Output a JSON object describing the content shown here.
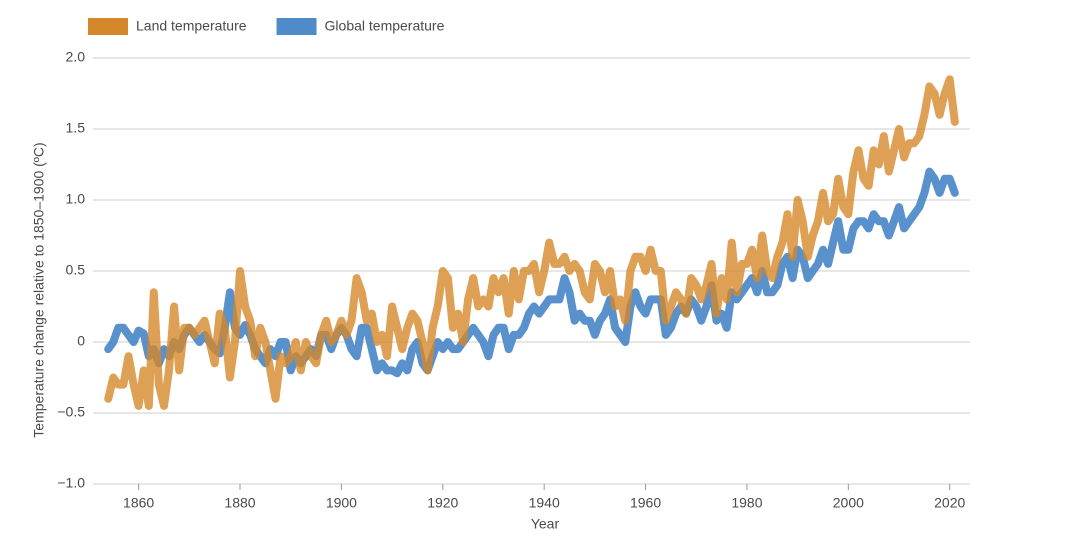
{
  "chart_data": {
    "type": "line",
    "y_label": "Temperature change relative to 1850–1900 (ºC)",
    "x_label": "Year",
    "xlim": [
      1851,
      2024
    ],
    "xticks": [
      1860,
      1880,
      1900,
      1920,
      1940,
      1960,
      1980,
      2000,
      2020
    ],
    "ylim": [
      -1.0,
      2.0
    ],
    "yticks": [
      {
        "value": -1.0,
        "label": "−1.0"
      },
      {
        "value": -0.5,
        "label": "−0.5"
      },
      0,
      {
        "value": 0.5,
        "label": "0.5"
      },
      {
        "value": 1.0,
        "label": "1.0"
      },
      {
        "value": 1.5,
        "label": "1.5"
      },
      {
        "value": 2.0,
        "label": "2.0"
      }
    ],
    "grid": true,
    "legend": "top-left",
    "x": [
      1854,
      1855,
      1856,
      1857,
      1858,
      1859,
      1860,
      1861,
      1862,
      1863,
      1864,
      1865,
      1866,
      1867,
      1868,
      1869,
      1870,
      1871,
      1872,
      1873,
      1874,
      1875,
      1876,
      1877,
      1878,
      1879,
      1880,
      1881,
      1882,
      1883,
      1884,
      1885,
      1886,
      1887,
      1888,
      1889,
      1890,
      1891,
      1892,
      1893,
      1894,
      1895,
      1896,
      1897,
      1898,
      1899,
      1900,
      1901,
      1902,
      1903,
      1904,
      1905,
      1906,
      1907,
      1908,
      1909,
      1910,
      1911,
      1912,
      1913,
      1914,
      1915,
      1916,
      1917,
      1918,
      1919,
      1920,
      1921,
      1922,
      1923,
      1924,
      1925,
      1926,
      1927,
      1928,
      1929,
      1930,
      1931,
      1932,
      1933,
      1934,
      1935,
      1936,
      1937,
      1938,
      1939,
      1940,
      1941,
      1942,
      1943,
      1944,
      1945,
      1946,
      1947,
      1948,
      1949,
      1950,
      1951,
      1952,
      1953,
      1954,
      1955,
      1956,
      1957,
      1958,
      1959,
      1960,
      1961,
      1962,
      1963,
      1964,
      1965,
      1966,
      1967,
      1968,
      1969,
      1970,
      1971,
      1972,
      1973,
      1974,
      1975,
      1976,
      1977,
      1978,
      1979,
      1980,
      1981,
      1982,
      1983,
      1984,
      1985,
      1986,
      1987,
      1988,
      1989,
      1990,
      1991,
      1992,
      1993,
      1994,
      1995,
      1996,
      1997,
      1998,
      1999,
      2000,
      2001,
      2002,
      2003,
      2004,
      2005,
      2006,
      2007,
      2008,
      2009,
      2010,
      2011,
      2012,
      2013,
      2014,
      2015,
      2016,
      2017,
      2018,
      2019,
      2020,
      2021
    ],
    "series": [
      {
        "name": "Land temperature",
        "color": "#d4882a",
        "values": [
          -0.4,
          -0.25,
          -0.3,
          -0.3,
          -0.1,
          -0.3,
          -0.45,
          -0.2,
          -0.45,
          0.35,
          -0.3,
          -0.45,
          -0.2,
          0.25,
          -0.2,
          0.1,
          0.1,
          0.05,
          0.1,
          0.15,
          0.0,
          -0.15,
          0.2,
          0.1,
          -0.25,
          0.0,
          0.5,
          0.25,
          0.15,
          -0.1,
          0.1,
          0.0,
          -0.2,
          -0.4,
          -0.1,
          -0.15,
          -0.1,
          0.0,
          -0.2,
          0.0,
          -0.1,
          -0.15,
          0.05,
          0.15,
          0.0,
          0.05,
          0.15,
          0.05,
          0.15,
          0.45,
          0.35,
          0.15,
          0.2,
          0.0,
          0.05,
          -0.1,
          0.25,
          0.1,
          -0.05,
          0.1,
          0.2,
          0.15,
          0.0,
          -0.2,
          0.1,
          0.25,
          0.5,
          0.45,
          0.1,
          0.2,
          0.0,
          0.3,
          0.45,
          0.25,
          0.3,
          0.25,
          0.45,
          0.35,
          0.45,
          0.2,
          0.5,
          0.3,
          0.5,
          0.5,
          0.55,
          0.35,
          0.5,
          0.7,
          0.55,
          0.55,
          0.6,
          0.5,
          0.55,
          0.5,
          0.35,
          0.3,
          0.55,
          0.5,
          0.35,
          0.5,
          0.25,
          0.3,
          0.15,
          0.5,
          0.6,
          0.6,
          0.5,
          0.65,
          0.5,
          0.5,
          0.15,
          0.25,
          0.35,
          0.3,
          0.2,
          0.45,
          0.4,
          0.3,
          0.4,
          0.55,
          0.2,
          0.45,
          0.3,
          0.7,
          0.35,
          0.55,
          0.55,
          0.65,
          0.45,
          0.75,
          0.5,
          0.45,
          0.6,
          0.7,
          0.9,
          0.6,
          1.0,
          0.85,
          0.6,
          0.75,
          0.85,
          1.05,
          0.85,
          0.9,
          1.15,
          0.95,
          0.9,
          1.2,
          1.35,
          1.15,
          1.1,
          1.35,
          1.25,
          1.45,
          1.2,
          1.35,
          1.5,
          1.3,
          1.4,
          1.4,
          1.45,
          1.6,
          1.8,
          1.75,
          1.6,
          1.75,
          1.85,
          1.55
        ]
      },
      {
        "name": "Global temperature",
        "color": "#4f8bc9",
        "values": [
          -0.05,
          0.0,
          0.1,
          0.1,
          0.05,
          0.0,
          0.08,
          0.06,
          -0.1,
          -0.05,
          -0.15,
          -0.05,
          -0.1,
          0.0,
          -0.05,
          0.05,
          0.1,
          0.05,
          0.0,
          0.05,
          0.0,
          -0.05,
          -0.08,
          0.1,
          0.35,
          0.1,
          0.05,
          0.12,
          0.05,
          -0.05,
          -0.1,
          -0.15,
          -0.05,
          -0.1,
          0.0,
          0.0,
          -0.2,
          -0.1,
          -0.15,
          -0.1,
          -0.05,
          -0.1,
          0.05,
          0.05,
          -0.05,
          0.05,
          0.1,
          0.05,
          -0.05,
          -0.1,
          0.1,
          0.1,
          -0.05,
          -0.2,
          -0.15,
          -0.2,
          -0.2,
          -0.22,
          -0.15,
          -0.2,
          -0.05,
          0.0,
          -0.15,
          -0.2,
          -0.1,
          0.0,
          -0.05,
          0.0,
          -0.05,
          -0.05,
          0.0,
          0.05,
          0.1,
          0.05,
          0.0,
          -0.1,
          0.05,
          0.1,
          0.1,
          -0.05,
          0.05,
          0.05,
          0.1,
          0.2,
          0.25,
          0.2,
          0.25,
          0.3,
          0.3,
          0.3,
          0.45,
          0.35,
          0.15,
          0.2,
          0.15,
          0.15,
          0.05,
          0.15,
          0.2,
          0.3,
          0.1,
          0.05,
          0.0,
          0.25,
          0.35,
          0.25,
          0.2,
          0.3,
          0.3,
          0.3,
          0.05,
          0.1,
          0.2,
          0.25,
          0.2,
          0.3,
          0.25,
          0.15,
          0.25,
          0.4,
          0.15,
          0.2,
          0.1,
          0.35,
          0.3,
          0.35,
          0.4,
          0.45,
          0.35,
          0.5,
          0.35,
          0.35,
          0.4,
          0.55,
          0.6,
          0.45,
          0.65,
          0.6,
          0.45,
          0.5,
          0.55,
          0.65,
          0.55,
          0.7,
          0.85,
          0.65,
          0.65,
          0.8,
          0.85,
          0.85,
          0.8,
          0.9,
          0.85,
          0.85,
          0.75,
          0.85,
          0.95,
          0.8,
          0.85,
          0.9,
          0.95,
          1.05,
          1.2,
          1.15,
          1.05,
          1.15,
          1.15,
          1.05
        ]
      }
    ]
  }
}
